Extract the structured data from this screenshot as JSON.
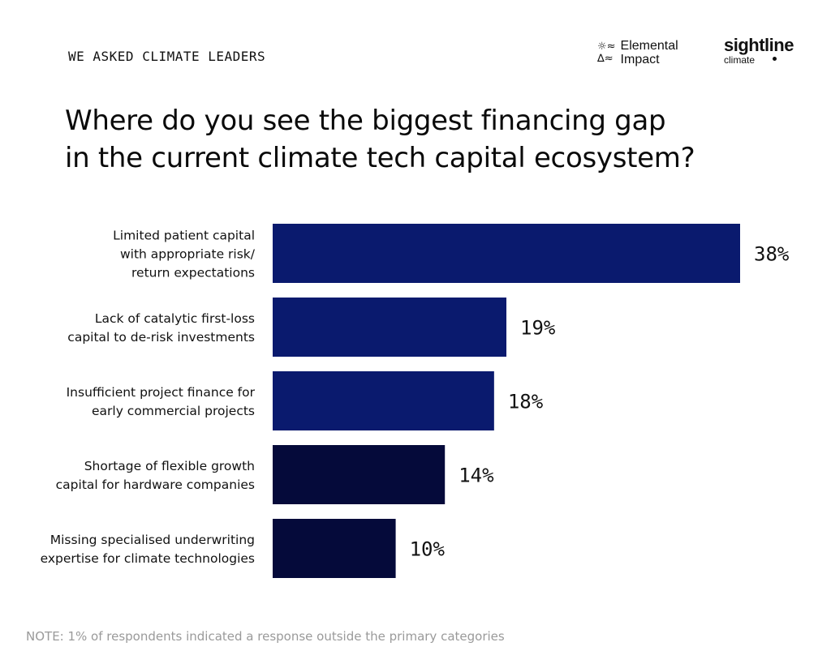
{
  "header": {
    "kicker": "WE ASKED CLIMATE LEADERS",
    "title_line1": "Where do you see the biggest financing gap",
    "title_line2": "in the current climate tech capital ecosystem?"
  },
  "logos": {
    "elemental_line1": "Elemental",
    "elemental_line2": "Impact",
    "sightline_name": "sightline",
    "sightline_sub": "climate"
  },
  "chart_data": {
    "type": "bar",
    "orientation": "horizontal",
    "categories": [
      [
        "Limited patient capital",
        "with appropriate risk/",
        "return expectations"
      ],
      [
        "Lack of catalytic first-loss",
        "capital to de-risk investments"
      ],
      [
        "Insufficient project finance for",
        "early commercial projects"
      ],
      [
        "Shortage of flexible growth",
        "capital for hardware companies"
      ],
      [
        "Missing specialised underwriting",
        "expertise for climate technologies"
      ]
    ],
    "values": [
      38,
      19,
      18,
      14,
      10
    ],
    "value_labels": [
      "38%",
      "19%",
      "18%",
      "14%",
      "10%"
    ],
    "bar_colors": [
      "#0a1a6e",
      "#0a1a6e",
      "#0a1a6e",
      "#050a3a",
      "#050a3a"
    ],
    "xlim": [
      0,
      38
    ],
    "grid": false,
    "title": "Where do you see the biggest financing gap in the current climate tech capital ecosystem?"
  },
  "footer": {
    "note": "NOTE: 1% of respondents indicated a response outside the primary categories"
  }
}
